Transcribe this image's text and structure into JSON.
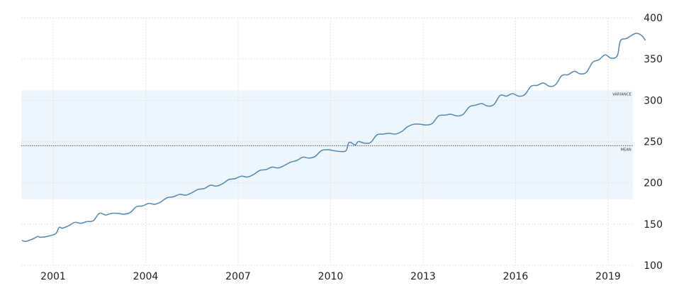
{
  "chart_data": {
    "type": "line",
    "title": "",
    "xlabel": "",
    "ylabel": "",
    "grid": true,
    "legend": "none",
    "xlim": [
      2000.0,
      2019.9
    ],
    "ylim": [
      100,
      400
    ],
    "x_tick_labels": [
      "2001",
      "2004",
      "2007",
      "2010",
      "2013",
      "2016",
      "2019"
    ],
    "y_tick_labels": [
      "100",
      "150",
      "200",
      "250",
      "300",
      "350",
      "400"
    ],
    "series": [
      {
        "values": [
          [
            2000.0,
            130
          ],
          [
            2000.1,
            129
          ],
          [
            2000.2,
            130
          ],
          [
            2000.4,
            133
          ],
          [
            2000.5,
            135
          ],
          [
            2000.6,
            134
          ],
          [
            2000.8,
            135
          ],
          [
            2001.0,
            137
          ],
          [
            2001.1,
            139
          ],
          [
            2001.2,
            146
          ],
          [
            2001.3,
            145
          ],
          [
            2001.5,
            148
          ],
          [
            2001.7,
            152
          ],
          [
            2001.9,
            151
          ],
          [
            2002.1,
            153
          ],
          [
            2002.3,
            154
          ],
          [
            2002.5,
            163
          ],
          [
            2002.7,
            161
          ],
          [
            2002.9,
            163
          ],
          [
            2003.1,
            163
          ],
          [
            2003.3,
            162
          ],
          [
            2003.5,
            164
          ],
          [
            2003.7,
            171
          ],
          [
            2003.9,
            172
          ],
          [
            2004.1,
            175
          ],
          [
            2004.3,
            174
          ],
          [
            2004.5,
            177
          ],
          [
            2004.7,
            182
          ],
          [
            2004.9,
            183
          ],
          [
            2005.1,
            186
          ],
          [
            2005.3,
            185
          ],
          [
            2005.5,
            188
          ],
          [
            2005.7,
            192
          ],
          [
            2005.9,
            193
          ],
          [
            2006.1,
            197
          ],
          [
            2006.3,
            196
          ],
          [
            2006.5,
            199
          ],
          [
            2006.7,
            204
          ],
          [
            2006.9,
            205
          ],
          [
            2007.1,
            208
          ],
          [
            2007.3,
            207
          ],
          [
            2007.5,
            210
          ],
          [
            2007.7,
            215
          ],
          [
            2007.9,
            216
          ],
          [
            2008.1,
            219
          ],
          [
            2008.3,
            218
          ],
          [
            2008.5,
            221
          ],
          [
            2008.7,
            225
          ],
          [
            2008.9,
            227
          ],
          [
            2009.1,
            231
          ],
          [
            2009.3,
            230
          ],
          [
            2009.5,
            232
          ],
          [
            2009.7,
            239
          ],
          [
            2009.9,
            240
          ],
          [
            2010.1,
            239
          ],
          [
            2010.3,
            238
          ],
          [
            2010.5,
            239
          ],
          [
            2010.6,
            249
          ],
          [
            2010.8,
            246
          ],
          [
            2010.9,
            250
          ],
          [
            2011.1,
            248
          ],
          [
            2011.3,
            249
          ],
          [
            2011.5,
            258
          ],
          [
            2011.7,
            259
          ],
          [
            2011.9,
            260
          ],
          [
            2012.1,
            259
          ],
          [
            2012.3,
            262
          ],
          [
            2012.5,
            268
          ],
          [
            2012.7,
            271
          ],
          [
            2012.9,
            271
          ],
          [
            2013.1,
            270
          ],
          [
            2013.3,
            272
          ],
          [
            2013.5,
            281
          ],
          [
            2013.7,
            282
          ],
          [
            2013.9,
            283
          ],
          [
            2014.1,
            281
          ],
          [
            2014.3,
            283
          ],
          [
            2014.5,
            292
          ],
          [
            2014.7,
            294
          ],
          [
            2014.9,
            296
          ],
          [
            2015.1,
            293
          ],
          [
            2015.3,
            295
          ],
          [
            2015.5,
            306
          ],
          [
            2015.7,
            305
          ],
          [
            2015.9,
            308
          ],
          [
            2016.1,
            305
          ],
          [
            2016.3,
            307
          ],
          [
            2016.5,
            317
          ],
          [
            2016.7,
            318
          ],
          [
            2016.9,
            321
          ],
          [
            2017.1,
            317
          ],
          [
            2017.3,
            319
          ],
          [
            2017.5,
            330
          ],
          [
            2017.7,
            331
          ],
          [
            2017.9,
            335
          ],
          [
            2018.1,
            332
          ],
          [
            2018.3,
            334
          ],
          [
            2018.5,
            346
          ],
          [
            2018.7,
            349
          ],
          [
            2018.9,
            355
          ],
          [
            2019.1,
            351
          ],
          [
            2019.3,
            354
          ],
          [
            2019.4,
            372
          ],
          [
            2019.6,
            375
          ],
          [
            2019.9,
            381
          ],
          [
            2020.1,
            378
          ],
          [
            2020.2,
            373
          ]
        ]
      }
    ],
    "mean": 245,
    "variance_band": [
      180,
      312
    ],
    "band_labels": {
      "variance": "VARIANCE",
      "mean": "MEAN"
    },
    "colors": {
      "line": "#5b8db5",
      "band": "#eef6fd",
      "grid": "#e6e6e6",
      "mean_line": "#555555"
    }
  }
}
